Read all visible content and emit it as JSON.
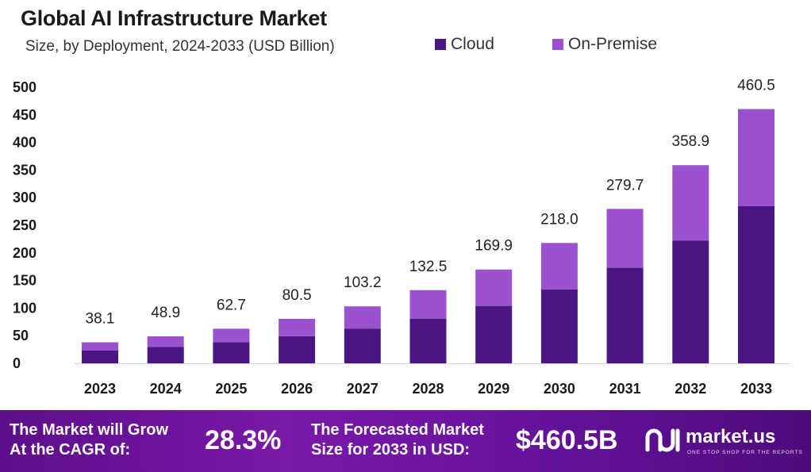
{
  "header": {
    "title": "Global AI Infrastructure Market",
    "subtitle": "Size, by Deployment, 2024-2033 (USD Billion)"
  },
  "legend": {
    "items": [
      {
        "label": "Cloud",
        "color": "#4a1782"
      },
      {
        "label": "On-Premise",
        "color": "#9a52cf"
      }
    ]
  },
  "chart_data": {
    "type": "bar",
    "stacked": true,
    "title": "Global AI Infrastructure Market",
    "subtitle": "Size, by Deployment, 2024-2033 (USD Billion)",
    "categories": [
      "2023",
      "2024",
      "2025",
      "2026",
      "2027",
      "2028",
      "2029",
      "2030",
      "2031",
      "2032",
      "2033"
    ],
    "series": [
      {
        "name": "Cloud",
        "color": "#4a1782",
        "values": [
          23,
          29.5,
          38,
          49,
          63,
          81,
          104,
          134,
          173,
          222,
          285
        ]
      },
      {
        "name": "On-Premise",
        "color": "#9a52cf",
        "values": [
          15.1,
          19.4,
          24.7,
          31.5,
          40.2,
          51.5,
          65.9,
          84,
          106.7,
          136.9,
          175.5
        ]
      }
    ],
    "totals": [
      "38.1",
      "48.9",
      "62.7",
      "80.5",
      "103.2",
      "132.5",
      "169.9",
      "218.0",
      "279.7",
      "358.9",
      "460.5"
    ],
    "y_ticks": [
      "0",
      "50",
      "100",
      "150",
      "200",
      "250",
      "300",
      "350",
      "400",
      "450",
      "500"
    ],
    "ylim": [
      0,
      500
    ],
    "xlabel": "",
    "ylabel": "",
    "grid": false,
    "legend_position": "top-right"
  },
  "footer": {
    "cagr_label_line1": "The Market will Grow",
    "cagr_label_line2": "At the CAGR of:",
    "cagr_value": "28.3%",
    "forecast_label_line1": "The Forecasted Market",
    "forecast_label_line2": "Size for 2033 in USD:",
    "forecast_value": "$460.5B",
    "brand": "market.us",
    "brand_tagline": "ONE STOP SHOP FOR THE REPORTS"
  }
}
